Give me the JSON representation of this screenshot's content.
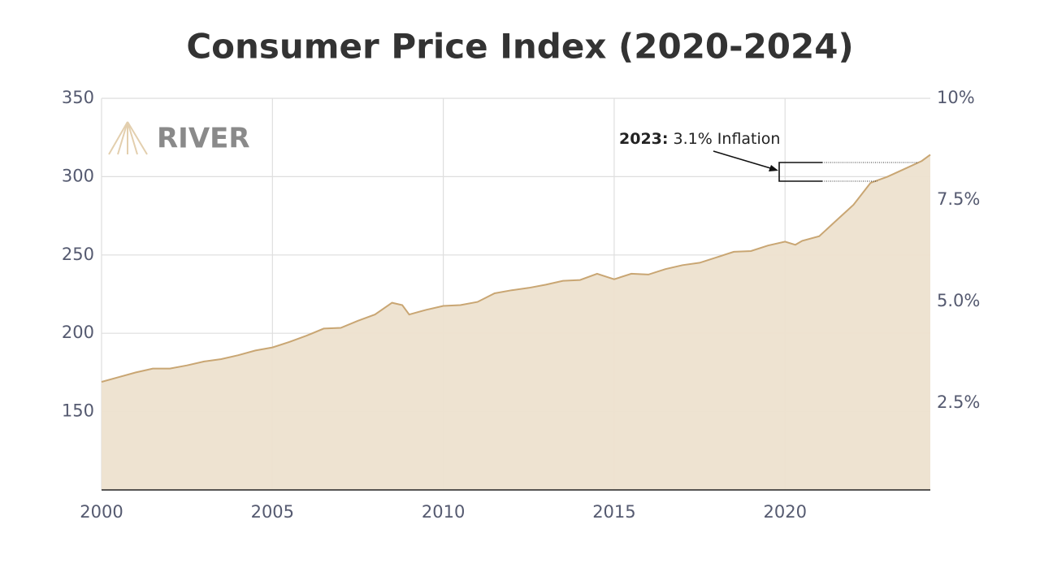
{
  "chart_data": {
    "type": "area",
    "title": "Consumer Price Index (2020-2024)",
    "watermark": "RIVER",
    "annotation": {
      "label": "2023:",
      "text": "3.1% Inflation"
    },
    "x": [
      2000,
      2000.5,
      2001,
      2001.5,
      2002,
      2002.5,
      2003,
      2003.5,
      2004,
      2004.5,
      2005,
      2005.5,
      2006,
      2006.5,
      2007,
      2007.5,
      2008,
      2008.5,
      2008.8,
      2009,
      2009.5,
      2010,
      2010.5,
      2011,
      2011.5,
      2012,
      2012.5,
      2013,
      2013.5,
      2014,
      2014.5,
      2015,
      2015.5,
      2016,
      2016.5,
      2017,
      2017.5,
      2018,
      2018.5,
      2019,
      2019.5,
      2020,
      2020.3,
      2020.5,
      2021,
      2021.5,
      2022,
      2022.5,
      2023,
      2023.5,
      2024,
      2024.25
    ],
    "values": [
      169,
      172,
      175,
      177.5,
      177.5,
      179.5,
      182,
      183.5,
      186,
      189,
      191,
      194.5,
      198.5,
      203,
      203.5,
      208,
      212,
      219.5,
      218,
      212,
      215,
      217.5,
      218,
      220,
      225.5,
      227.5,
      229,
      231,
      233.5,
      234,
      238,
      234.5,
      238,
      237.5,
      241,
      243.5,
      245,
      248.5,
      252,
      252.5,
      256,
      258.5,
      256.5,
      259,
      262,
      272,
      282,
      296,
      300,
      305,
      310,
      314
    ],
    "color": "#c9a673",
    "fill": "#ede2cf",
    "xlim": [
      2000,
      2024.25
    ],
    "xticks": [
      2000,
      2005,
      2010,
      2015,
      2020
    ],
    "ylim": [
      100,
      350
    ],
    "yticks": [
      150,
      200,
      250,
      300,
      350
    ],
    "y2lim": [
      0.36,
      10
    ],
    "y2ticks": [
      {
        "value": 2.5,
        "label": "2.5%"
      },
      {
        "value": 5,
        "label": "5.0%"
      },
      {
        "value": 7.5,
        "label": "7.5%"
      },
      {
        "value": 10,
        "label": "10%"
      }
    ],
    "grid": true
  }
}
